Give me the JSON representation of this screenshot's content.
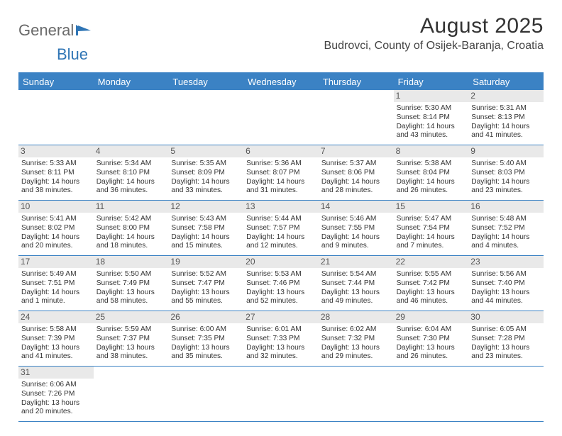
{
  "logo": {
    "part1": "General",
    "part2": "Blue"
  },
  "title": "August 2025",
  "subtitle": "Budrovci, County of Osijek-Baranja, Croatia",
  "day_headers": [
    "Sunday",
    "Monday",
    "Tuesday",
    "Wednesday",
    "Thursday",
    "Friday",
    "Saturday"
  ],
  "colors": {
    "header_bg": "#3b82c4",
    "header_text": "#ffffff",
    "daynum_bg": "#e9e9e9",
    "rule": "#3b82c4"
  },
  "weeks": [
    [
      {
        "empty": true
      },
      {
        "empty": true
      },
      {
        "empty": true
      },
      {
        "empty": true
      },
      {
        "empty": true
      },
      {
        "day": "1",
        "sunrise": "Sunrise: 5:30 AM",
        "sunset": "Sunset: 8:14 PM",
        "daylight1": "Daylight: 14 hours",
        "daylight2": "and 43 minutes."
      },
      {
        "day": "2",
        "sunrise": "Sunrise: 5:31 AM",
        "sunset": "Sunset: 8:13 PM",
        "daylight1": "Daylight: 14 hours",
        "daylight2": "and 41 minutes."
      }
    ],
    [
      {
        "day": "3",
        "sunrise": "Sunrise: 5:33 AM",
        "sunset": "Sunset: 8:11 PM",
        "daylight1": "Daylight: 14 hours",
        "daylight2": "and 38 minutes."
      },
      {
        "day": "4",
        "sunrise": "Sunrise: 5:34 AM",
        "sunset": "Sunset: 8:10 PM",
        "daylight1": "Daylight: 14 hours",
        "daylight2": "and 36 minutes."
      },
      {
        "day": "5",
        "sunrise": "Sunrise: 5:35 AM",
        "sunset": "Sunset: 8:09 PM",
        "daylight1": "Daylight: 14 hours",
        "daylight2": "and 33 minutes."
      },
      {
        "day": "6",
        "sunrise": "Sunrise: 5:36 AM",
        "sunset": "Sunset: 8:07 PM",
        "daylight1": "Daylight: 14 hours",
        "daylight2": "and 31 minutes."
      },
      {
        "day": "7",
        "sunrise": "Sunrise: 5:37 AM",
        "sunset": "Sunset: 8:06 PM",
        "daylight1": "Daylight: 14 hours",
        "daylight2": "and 28 minutes."
      },
      {
        "day": "8",
        "sunrise": "Sunrise: 5:38 AM",
        "sunset": "Sunset: 8:04 PM",
        "daylight1": "Daylight: 14 hours",
        "daylight2": "and 26 minutes."
      },
      {
        "day": "9",
        "sunrise": "Sunrise: 5:40 AM",
        "sunset": "Sunset: 8:03 PM",
        "daylight1": "Daylight: 14 hours",
        "daylight2": "and 23 minutes."
      }
    ],
    [
      {
        "day": "10",
        "sunrise": "Sunrise: 5:41 AM",
        "sunset": "Sunset: 8:02 PM",
        "daylight1": "Daylight: 14 hours",
        "daylight2": "and 20 minutes."
      },
      {
        "day": "11",
        "sunrise": "Sunrise: 5:42 AM",
        "sunset": "Sunset: 8:00 PM",
        "daylight1": "Daylight: 14 hours",
        "daylight2": "and 18 minutes."
      },
      {
        "day": "12",
        "sunrise": "Sunrise: 5:43 AM",
        "sunset": "Sunset: 7:58 PM",
        "daylight1": "Daylight: 14 hours",
        "daylight2": "and 15 minutes."
      },
      {
        "day": "13",
        "sunrise": "Sunrise: 5:44 AM",
        "sunset": "Sunset: 7:57 PM",
        "daylight1": "Daylight: 14 hours",
        "daylight2": "and 12 minutes."
      },
      {
        "day": "14",
        "sunrise": "Sunrise: 5:46 AM",
        "sunset": "Sunset: 7:55 PM",
        "daylight1": "Daylight: 14 hours",
        "daylight2": "and 9 minutes."
      },
      {
        "day": "15",
        "sunrise": "Sunrise: 5:47 AM",
        "sunset": "Sunset: 7:54 PM",
        "daylight1": "Daylight: 14 hours",
        "daylight2": "and 7 minutes."
      },
      {
        "day": "16",
        "sunrise": "Sunrise: 5:48 AM",
        "sunset": "Sunset: 7:52 PM",
        "daylight1": "Daylight: 14 hours",
        "daylight2": "and 4 minutes."
      }
    ],
    [
      {
        "day": "17",
        "sunrise": "Sunrise: 5:49 AM",
        "sunset": "Sunset: 7:51 PM",
        "daylight1": "Daylight: 14 hours",
        "daylight2": "and 1 minute."
      },
      {
        "day": "18",
        "sunrise": "Sunrise: 5:50 AM",
        "sunset": "Sunset: 7:49 PM",
        "daylight1": "Daylight: 13 hours",
        "daylight2": "and 58 minutes."
      },
      {
        "day": "19",
        "sunrise": "Sunrise: 5:52 AM",
        "sunset": "Sunset: 7:47 PM",
        "daylight1": "Daylight: 13 hours",
        "daylight2": "and 55 minutes."
      },
      {
        "day": "20",
        "sunrise": "Sunrise: 5:53 AM",
        "sunset": "Sunset: 7:46 PM",
        "daylight1": "Daylight: 13 hours",
        "daylight2": "and 52 minutes."
      },
      {
        "day": "21",
        "sunrise": "Sunrise: 5:54 AM",
        "sunset": "Sunset: 7:44 PM",
        "daylight1": "Daylight: 13 hours",
        "daylight2": "and 49 minutes."
      },
      {
        "day": "22",
        "sunrise": "Sunrise: 5:55 AM",
        "sunset": "Sunset: 7:42 PM",
        "daylight1": "Daylight: 13 hours",
        "daylight2": "and 46 minutes."
      },
      {
        "day": "23",
        "sunrise": "Sunrise: 5:56 AM",
        "sunset": "Sunset: 7:40 PM",
        "daylight1": "Daylight: 13 hours",
        "daylight2": "and 44 minutes."
      }
    ],
    [
      {
        "day": "24",
        "sunrise": "Sunrise: 5:58 AM",
        "sunset": "Sunset: 7:39 PM",
        "daylight1": "Daylight: 13 hours",
        "daylight2": "and 41 minutes."
      },
      {
        "day": "25",
        "sunrise": "Sunrise: 5:59 AM",
        "sunset": "Sunset: 7:37 PM",
        "daylight1": "Daylight: 13 hours",
        "daylight2": "and 38 minutes."
      },
      {
        "day": "26",
        "sunrise": "Sunrise: 6:00 AM",
        "sunset": "Sunset: 7:35 PM",
        "daylight1": "Daylight: 13 hours",
        "daylight2": "and 35 minutes."
      },
      {
        "day": "27",
        "sunrise": "Sunrise: 6:01 AM",
        "sunset": "Sunset: 7:33 PM",
        "daylight1": "Daylight: 13 hours",
        "daylight2": "and 32 minutes."
      },
      {
        "day": "28",
        "sunrise": "Sunrise: 6:02 AM",
        "sunset": "Sunset: 7:32 PM",
        "daylight1": "Daylight: 13 hours",
        "daylight2": "and 29 minutes."
      },
      {
        "day": "29",
        "sunrise": "Sunrise: 6:04 AM",
        "sunset": "Sunset: 7:30 PM",
        "daylight1": "Daylight: 13 hours",
        "daylight2": "and 26 minutes."
      },
      {
        "day": "30",
        "sunrise": "Sunrise: 6:05 AM",
        "sunset": "Sunset: 7:28 PM",
        "daylight1": "Daylight: 13 hours",
        "daylight2": "and 23 minutes."
      }
    ],
    [
      {
        "day": "31",
        "sunrise": "Sunrise: 6:06 AM",
        "sunset": "Sunset: 7:26 PM",
        "daylight1": "Daylight: 13 hours",
        "daylight2": "and 20 minutes."
      },
      {
        "empty": true
      },
      {
        "empty": true
      },
      {
        "empty": true
      },
      {
        "empty": true
      },
      {
        "empty": true
      },
      {
        "empty": true
      }
    ]
  ]
}
